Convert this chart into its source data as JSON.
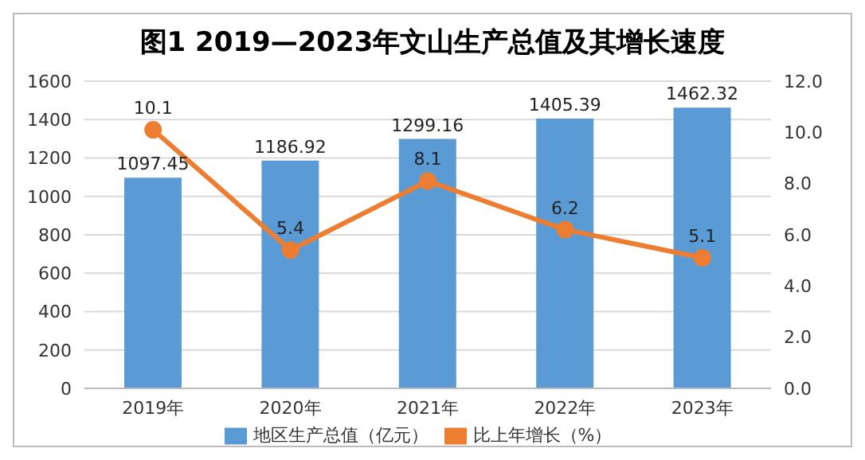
{
  "chart_data": {
    "type": "bar",
    "title": "图1  2019—2023年文山生产总值及其增长速度",
    "categories": [
      "2019年",
      "2020年",
      "2021年",
      "2022年",
      "2023年"
    ],
    "series": [
      {
        "name": "地区生产总值（亿元）",
        "color": "#5b9bd5",
        "values": [
          1097.45,
          1186.92,
          1299.16,
          1405.39,
          1462.32
        ]
      },
      {
        "name": "比上年增长（%）",
        "type": "line",
        "axis": "y2",
        "color": "#ed7d31",
        "values": [
          10.1,
          5.4,
          8.1,
          6.2,
          5.1
        ]
      }
    ],
    "ylim": [
      0,
      1600
    ],
    "yticks": [
      0,
      200,
      400,
      600,
      800,
      1000,
      1200,
      1400,
      1600
    ],
    "y2lim": [
      0,
      12
    ],
    "y2ticks": [
      {
        "value": 0,
        "label": "0.0"
      },
      {
        "value": 2,
        "label": "2.0"
      },
      {
        "value": 4,
        "label": "4.0"
      },
      {
        "value": 6,
        "label": "6.0"
      },
      {
        "value": 8,
        "label": "8.0"
      },
      {
        "value": 10,
        "label": "10.0"
      },
      {
        "value": 12,
        "label": "12.0"
      }
    ],
    "grid": "y",
    "legend": "bottom",
    "marker": "circle",
    "line_style": "solid",
    "data_labels": true
  }
}
